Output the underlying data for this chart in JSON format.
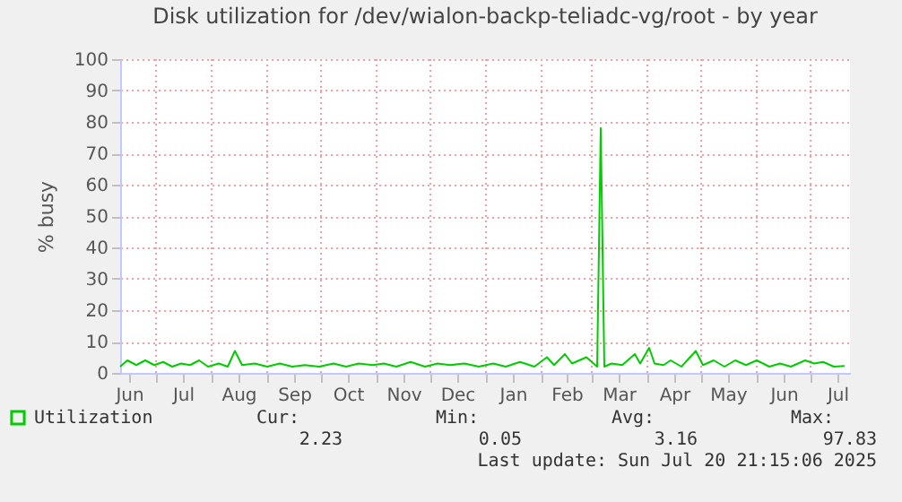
{
  "chart_data": {
    "type": "line",
    "title": "Disk utilization for /dev/wialon-backp-teliadc-vg/root - by year",
    "ylabel": "% busy",
    "x": [
      "2024-06-11",
      "2024-06-15",
      "2024-06-20",
      "2024-06-25",
      "2024-06-30",
      "2024-07-05",
      "2024-07-10",
      "2024-07-15",
      "2024-07-20",
      "2024-07-25",
      "2024-07-30",
      "2024-08-05",
      "2024-08-10",
      "2024-08-14",
      "2024-08-18",
      "2024-08-25",
      "2024-09-01",
      "2024-09-08",
      "2024-09-15",
      "2024-09-22",
      "2024-09-30",
      "2024-10-08",
      "2024-10-15",
      "2024-10-22",
      "2024-10-30",
      "2024-11-05",
      "2024-11-12",
      "2024-11-20",
      "2024-11-28",
      "2024-12-05",
      "2024-12-12",
      "2024-12-20",
      "2024-12-28",
      "2025-01-05",
      "2025-01-12",
      "2025-01-20",
      "2025-01-28",
      "2025-02-04",
      "2025-02-08",
      "2025-02-14",
      "2025-02-18",
      "2025-02-26",
      "2025-03-02",
      "2025-03-04",
      "2025-03-06",
      "2025-03-08",
      "2025-03-12",
      "2025-03-18",
      "2025-03-25",
      "2025-03-28",
      "2025-04-02",
      "2025-04-05",
      "2025-04-10",
      "2025-04-14",
      "2025-04-20",
      "2025-04-28",
      "2025-05-02",
      "2025-05-08",
      "2025-05-14",
      "2025-05-20",
      "2025-05-26",
      "2025-06-01",
      "2025-06-08",
      "2025-06-14",
      "2025-06-20",
      "2025-06-28",
      "2025-07-03",
      "2025-07-08",
      "2025-07-14",
      "2025-07-20"
    ],
    "series": [
      {
        "name": "Utilization",
        "color": "#00cc00",
        "values": [
          2,
          4,
          2.5,
          4,
          2.5,
          3.5,
          2,
          3,
          2.5,
          4,
          2,
          3,
          2,
          7,
          2.5,
          3,
          2,
          3,
          2,
          2.5,
          2,
          3,
          2,
          3,
          2.5,
          3,
          2,
          3.5,
          2,
          3,
          2.5,
          3,
          2,
          3,
          2,
          3.5,
          2,
          5,
          2.5,
          6,
          3,
          5,
          3,
          2,
          78,
          2,
          3,
          2.5,
          6,
          3,
          8,
          3,
          2.5,
          4,
          2,
          7,
          2.5,
          4,
          2,
          4,
          2.5,
          4,
          2,
          3,
          2,
          4,
          3,
          3.5,
          2,
          2.2
        ]
      }
    ],
    "xlim": [
      "2024-06-11",
      "2025-07-23"
    ],
    "xticks": [
      {
        "value": "2024-06-16",
        "label": "Jun"
      },
      {
        "value": "2024-07-01",
        "label": null
      },
      {
        "value": "2024-07-16",
        "label": "Jul"
      },
      {
        "value": "2024-08-01",
        "label": null
      },
      {
        "value": "2024-08-16",
        "label": "Aug"
      },
      {
        "value": "2024-09-01",
        "label": null
      },
      {
        "value": "2024-09-16",
        "label": "Sep"
      },
      {
        "value": "2024-10-01",
        "label": null
      },
      {
        "value": "2024-10-16",
        "label": "Oct"
      },
      {
        "value": "2024-11-01",
        "label": null
      },
      {
        "value": "2024-11-16",
        "label": "Nov"
      },
      {
        "value": "2024-12-01",
        "label": null
      },
      {
        "value": "2024-12-16",
        "label": "Dec"
      },
      {
        "value": "2025-01-01",
        "label": null
      },
      {
        "value": "2025-01-16",
        "label": "Jan"
      },
      {
        "value": "2025-02-01",
        "label": null
      },
      {
        "value": "2025-02-15",
        "label": "Feb"
      },
      {
        "value": "2025-03-01",
        "label": null
      },
      {
        "value": "2025-03-16",
        "label": "Mar"
      },
      {
        "value": "2025-04-01",
        "label": null
      },
      {
        "value": "2025-04-16",
        "label": "Apr"
      },
      {
        "value": "2025-05-01",
        "label": null
      },
      {
        "value": "2025-05-16",
        "label": "May"
      },
      {
        "value": "2025-06-01",
        "label": null
      },
      {
        "value": "2025-06-16",
        "label": "Jun"
      },
      {
        "value": "2025-07-01",
        "label": null
      },
      {
        "value": "2025-07-16",
        "label": "Jul"
      }
    ],
    "ylim": [
      0,
      100
    ],
    "yticks": [
      0,
      10,
      20,
      30,
      40,
      50,
      60,
      70,
      80,
      90,
      100
    ],
    "grid": true,
    "legend": "bottom left",
    "line_style": "solid",
    "annotations": [
      "Cur:",
      "Min:",
      "Avg:",
      "Max:",
      "2.23",
      "0.05",
      "3.16",
      "97.83",
      "Last update: Sun Jul 20 21:15:06 2025"
    ]
  }
}
